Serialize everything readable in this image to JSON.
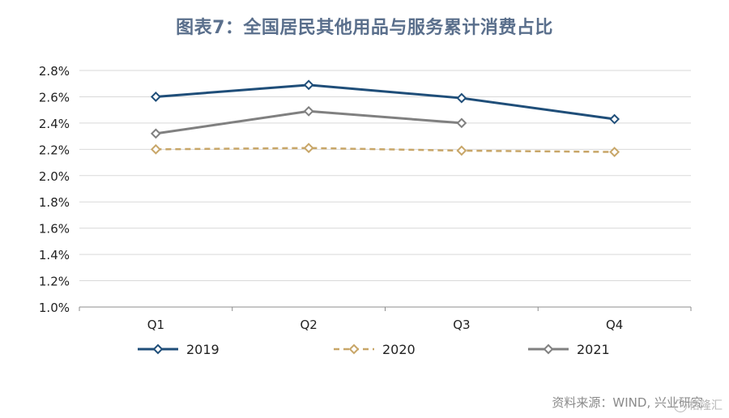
{
  "title": "图表7：全国居民其他用品与服务累计消费占比",
  "source": "资料来源：WIND, 兴业研究",
  "watermark": {
    "text": "格隆汇",
    "icon": "circle-logo-icon"
  },
  "chart_data": {
    "type": "line",
    "title": "图表7：全国居民其他用品与服务累计消费占比",
    "categories": [
      "Q1",
      "Q2",
      "Q3",
      "Q4"
    ],
    "ylim": [
      0.01,
      0.028
    ],
    "yticks": [
      "1.0%",
      "1.2%",
      "1.4%",
      "1.6%",
      "1.8%",
      "2.0%",
      "2.2%",
      "2.4%",
      "2.6%",
      "2.8%"
    ],
    "ytick_values": [
      0.01,
      0.012,
      0.014,
      0.016,
      0.018,
      0.02,
      0.022,
      0.024,
      0.026,
      0.028
    ],
    "grid": true,
    "legend_position": "bottom",
    "series": [
      {
        "name": "2019",
        "values": [
          0.026,
          0.0269,
          0.0259,
          0.0243
        ],
        "color": "#1f4e79",
        "dashed": false
      },
      {
        "name": "2020",
        "values": [
          0.022,
          0.0221,
          0.0219,
          0.0218
        ],
        "color": "#c8a668",
        "dashed": true
      },
      {
        "name": "2021",
        "values": [
          0.0232,
          0.0249,
          0.024,
          null
        ],
        "color": "#808080",
        "dashed": false
      }
    ]
  }
}
